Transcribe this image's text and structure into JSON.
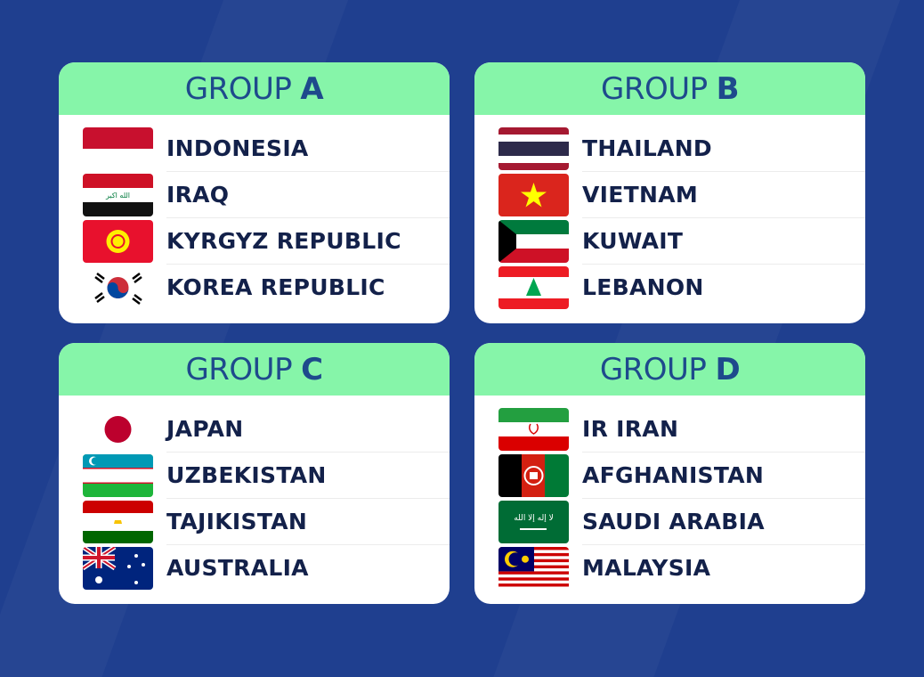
{
  "colors": {
    "background": "#1f3f8f",
    "header": "#86f5a9",
    "title": "#1e4a8c",
    "team_text": "#13214a"
  },
  "groups": [
    {
      "prefix": "GROUP",
      "letter": "A",
      "teams": [
        {
          "name": "INDONESIA",
          "flag": "indonesia-flag"
        },
        {
          "name": "IRAQ",
          "flag": "iraq-flag"
        },
        {
          "name": "KYRGYZ REPUBLIC",
          "flag": "kyrgyzstan-flag"
        },
        {
          "name": "KOREA REPUBLIC",
          "flag": "korea-flag"
        }
      ]
    },
    {
      "prefix": "GROUP",
      "letter": "B",
      "teams": [
        {
          "name": "THAILAND",
          "flag": "thailand-flag"
        },
        {
          "name": "VIETNAM",
          "flag": "vietnam-flag"
        },
        {
          "name": "KUWAIT",
          "flag": "kuwait-flag"
        },
        {
          "name": "LEBANON",
          "flag": "lebanon-flag"
        }
      ]
    },
    {
      "prefix": "GROUP",
      "letter": "C",
      "teams": [
        {
          "name": "JAPAN",
          "flag": "japan-flag"
        },
        {
          "name": "UZBEKISTAN",
          "flag": "uzbekistan-flag"
        },
        {
          "name": "TAJIKISTAN",
          "flag": "tajikistan-flag"
        },
        {
          "name": "AUSTRALIA",
          "flag": "australia-flag"
        }
      ]
    },
    {
      "prefix": "GROUP",
      "letter": "D",
      "teams": [
        {
          "name": "IR IRAN",
          "flag": "iran-flag"
        },
        {
          "name": "AFGHANISTAN",
          "flag": "afghanistan-flag"
        },
        {
          "name": "SAUDI ARABIA",
          "flag": "saudi-arabia-flag"
        },
        {
          "name": "MALAYSIA",
          "flag": "malaysia-flag"
        }
      ]
    }
  ]
}
